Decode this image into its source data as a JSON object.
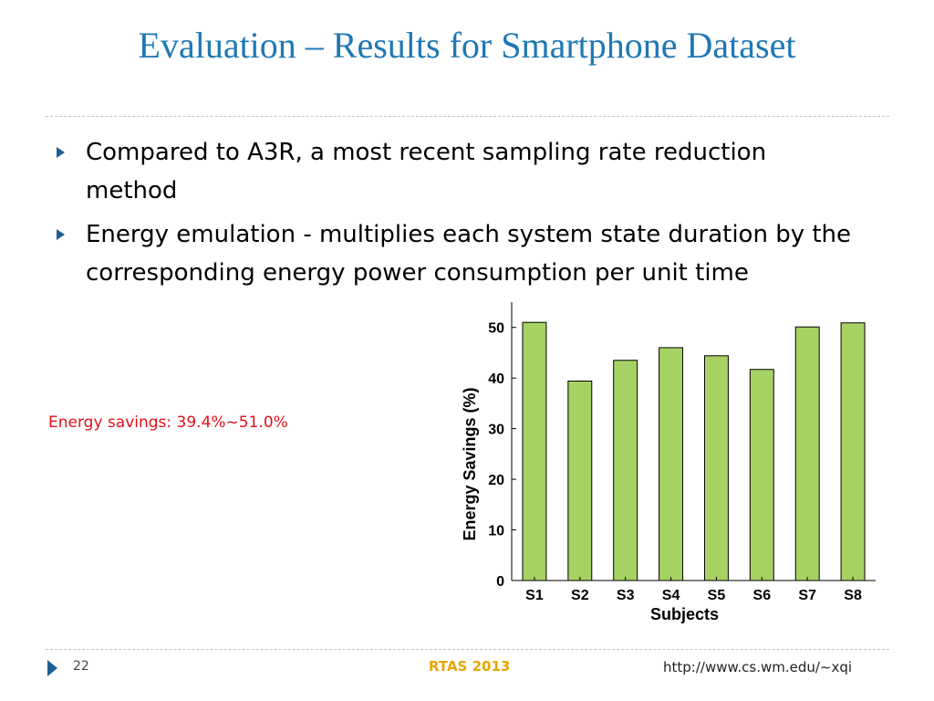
{
  "slide": {
    "title": "Evaluation – Results for Smartphone Dataset",
    "bullets": [
      "Compared to A3R, a most recent sampling rate reduction method",
      "Energy emulation - multiplies each system state duration by the corresponding energy power consumption per unit time"
    ],
    "note": "Energy savings: 39.4%~51.0%",
    "note_color": "#e3111a",
    "footer": {
      "page": "22",
      "conference": "RTAS 2013",
      "url": "http://www.cs.wm.edu/~xqi"
    }
  },
  "chart_data": {
    "type": "bar",
    "categories": [
      "S1",
      "S2",
      "S3",
      "S4",
      "S5",
      "S6",
      "S7",
      "S8"
    ],
    "values": [
      51.0,
      39.4,
      43.5,
      46.0,
      44.4,
      41.7,
      50.1,
      50.9
    ],
    "xlabel": "Subjects",
    "ylabel": "Energy Savings (%)",
    "ylim": [
      0,
      55
    ],
    "yticks": [
      0,
      10,
      20,
      30,
      40,
      50
    ],
    "bar_color": "#a6d263",
    "grid": false,
    "legend": "none"
  }
}
